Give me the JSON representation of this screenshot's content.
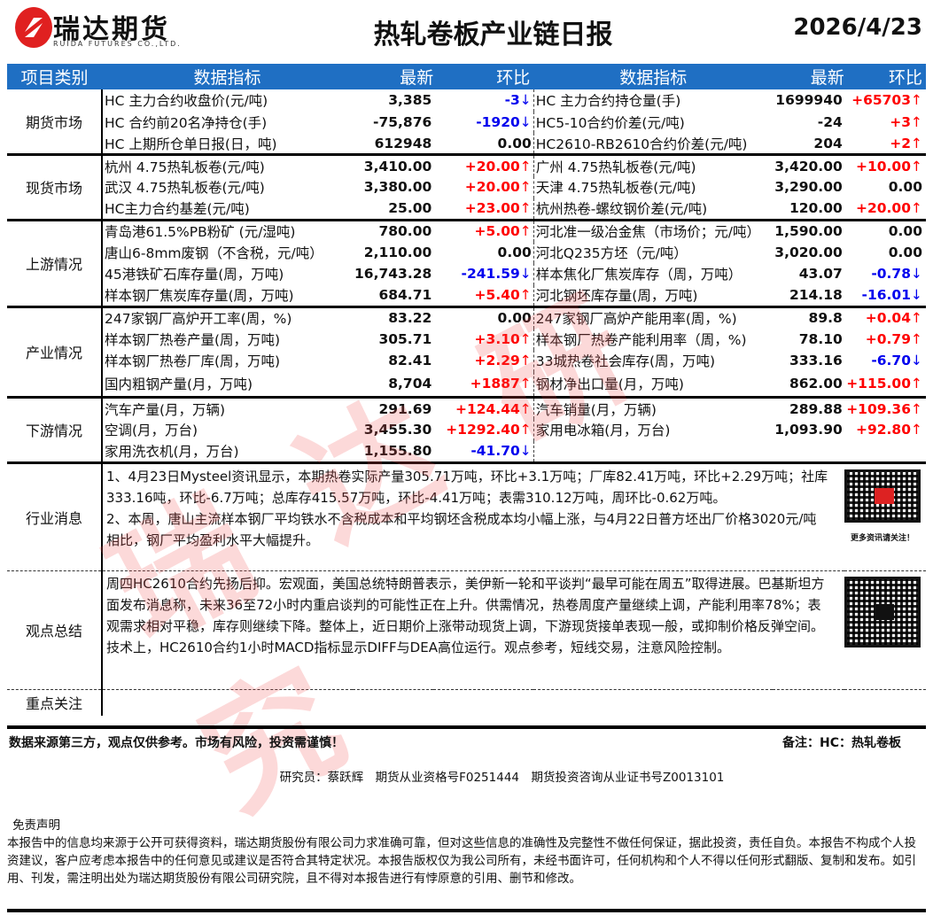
{
  "header": {
    "brand": "瑞达期货",
    "brand_en": "RUIDA FUTURES CO.,LTD.",
    "title": "热轧卷板产业链日报",
    "date": "2026/4/23"
  },
  "columns": {
    "category": "项目类别",
    "indicator": "数据指标",
    "latest": "最新",
    "change": "环比"
  },
  "colors": {
    "header_bg": "#1f6fc3",
    "up": "#ff0000",
    "down": "#0000ee",
    "brand": "#e02020"
  },
  "watermark": "瑞达研究",
  "sections": [
    {
      "name": "期货市场",
      "rows": [
        {
          "l": {
            "name": "HC 主力合约收盘价(元/吨)",
            "value": "3,385",
            "change": "-3",
            "trend": "down"
          },
          "r": {
            "name": "HC 主力合约持仓量(手)",
            "value": "1699940",
            "change": "+65703",
            "trend": "up"
          }
        },
        {
          "l": {
            "name": "HC 合约前20名净持仓(手)",
            "value": "-75,876",
            "change": "-1920",
            "trend": "down"
          },
          "r": {
            "name": "HC5-10合约价差(元/吨)",
            "value": "-24",
            "change": "+3",
            "trend": "up"
          }
        },
        {
          "l": {
            "name": "HC 上期所仓单日报(日，吨)",
            "value": "612948",
            "change": "0.00",
            "trend": "flat"
          },
          "r": {
            "name": "HC2610-RB2610合约价差(元/吨)",
            "value": "204",
            "change": "+2",
            "trend": "up"
          }
        }
      ]
    },
    {
      "name": "现货市场",
      "rows": [
        {
          "l": {
            "name": "杭州 4.75热轧板卷(元/吨)",
            "value": "3,410.00",
            "change": "+20.00",
            "trend": "up"
          },
          "r": {
            "name": "广州 4.75热轧板卷(元/吨)",
            "value": "3,420.00",
            "change": "+10.00",
            "trend": "up"
          }
        },
        {
          "l": {
            "name": "武汉 4.75热轧板卷(元/吨)",
            "value": "3,380.00",
            "change": "+20.00",
            "trend": "up"
          },
          "r": {
            "name": "天津 4.75热轧板卷(元/吨)",
            "value": "3,290.00",
            "change": "0.00",
            "trend": "flat"
          }
        },
        {
          "l": {
            "name": "HC主力合约基差(元/吨)",
            "value": "25.00",
            "change": "+23.00",
            "trend": "up"
          },
          "r": {
            "name": "杭州热卷-螺纹钢价差(元/吨)",
            "value": "120.00",
            "change": "+20.00",
            "trend": "up"
          }
        }
      ]
    },
    {
      "name": "上游情况",
      "rows": [
        {
          "l": {
            "name": "青岛港61.5%PB粉矿 (元/湿吨)",
            "value": "780.00",
            "change": "+5.00",
            "trend": "up"
          },
          "r": {
            "name": "河北准一级冶金焦（市场价；元/吨）",
            "value": "1,590.00",
            "change": "0.00",
            "trend": "flat"
          }
        },
        {
          "l": {
            "name": "唐山6-8mm废钢（不含税，元/吨）",
            "value": "2,110.00",
            "change": "0.00",
            "trend": "flat"
          },
          "r": {
            "name": "河北Q235方坯（元/吨）",
            "value": "3,020.00",
            "change": "0.00",
            "trend": "flat"
          }
        },
        {
          "l": {
            "name": "45港铁矿石库存量(周，万吨)",
            "value": "16,743.28",
            "change": "-241.59",
            "trend": "down"
          },
          "r": {
            "name": "样本焦化厂焦炭库存（周，万吨）",
            "value": "43.07",
            "change": "-0.78",
            "trend": "down"
          }
        },
        {
          "l": {
            "name": "样本钢厂焦炭库存量(周，万吨)",
            "value": "684.71",
            "change": "+5.40",
            "trend": "up"
          },
          "r": {
            "name": "河北钢坯库存量(周，万吨)",
            "value": "214.18",
            "change": "-16.01",
            "trend": "down"
          }
        }
      ]
    },
    {
      "name": "产业情况",
      "rows": [
        {
          "l": {
            "name": "247家钢厂高炉开工率(周，%)",
            "value": "83.22",
            "change": "0.00",
            "trend": "flat"
          },
          "r": {
            "name": "247家钢厂高炉产能用率(周，%)",
            "value": "89.8",
            "change": "+0.04",
            "trend": "up"
          }
        },
        {
          "l": {
            "name": "样本钢厂热卷产量(周，万吨)",
            "value": "305.71",
            "change": "+3.10",
            "trend": "up"
          },
          "r": {
            "name": "样本钢厂热卷产能利用率（周，%)",
            "value": "78.10",
            "change": "+0.79",
            "trend": "up"
          }
        },
        {
          "l": {
            "name": "样本钢厂热卷厂库(周，万吨)",
            "value": "82.41",
            "change": "+2.29",
            "trend": "up"
          },
          "r": {
            "name": "33城热卷社会库存(周，万吨)",
            "value": "333.16",
            "change": "-6.70",
            "trend": "down"
          }
        },
        {
          "l": {
            "name": "国内粗钢产量(月，万吨)",
            "value": "8,704",
            "change": "+1887",
            "trend": "up"
          },
          "r": {
            "name": "钢材净出口量(月，万吨)",
            "value": "862.00",
            "change": "+115.00",
            "trend": "up"
          }
        }
      ]
    },
    {
      "name": "下游情况",
      "rows": [
        {
          "l": {
            "name": "汽车产量(月，万辆)",
            "value": "291.69",
            "change": "+124.44",
            "trend": "up"
          },
          "r": {
            "name": "汽车销量(月，万辆)",
            "value": "289.88",
            "change": "+109.36",
            "trend": "up"
          }
        },
        {
          "l": {
            "name": "空调(月，万台)",
            "value": "3,455.30",
            "change": "+1292.40",
            "trend": "up"
          },
          "r": {
            "name": "家用电冰箱(月，万台)",
            "value": "1,093.90",
            "change": "+92.80",
            "trend": "up"
          }
        },
        {
          "l": {
            "name": "家用洗衣机(月，万台)",
            "value": "1,155.80",
            "change": "-41.70",
            "trend": "down"
          },
          "r": {
            "name": "",
            "value": "",
            "change": "",
            "trend": "flat"
          }
        }
      ]
    }
  ],
  "news": {
    "label": "行业消息",
    "lines": [
      "1、4月23日Mysteel资讯显示，本期热卷实际产量305.71万吨，环比+3.1万吨；厂库82.41万吨，环比+2.29万吨；社库333.16吨，环比-6.7万吨；总库存415.57万吨，环比-4.41万吨；表需310.12万吨，周环比-0.62万吨。",
      "2、本周，唐山主流样本钢厂平均铁水不含税成本和平均钢坯含税成本均小幅上涨，与4月22日普方坯出厂价格3020元/吨相比，钢厂平均盈利水平大幅提升。"
    ],
    "qr_caption": "更多资讯请关注！"
  },
  "view": {
    "label": "观点总结",
    "text": "周四HC2610合约先扬后抑。宏观面，美国总统特朗普表示，美伊新一轮和平谈判“最早可能在周五”取得进展。巴基斯坦方面发布消息称，未来36至72小时内重启谈判的可能性正在上升。供需情况，热卷周度产量继续上调，产能利用率78%；表观需求相对平稳，库存则继续下降。整体上，近日期价上涨带动现货上调，下游现货接单表现一般，或抑制价格反弹空间。技术上，HC2610合约1小时MACD指标显示DIFF与DEA高位运行。观点参考，短线交易，注意风险控制。"
  },
  "focus": {
    "label": "重点关注",
    "text": ""
  },
  "footer": {
    "note_left": "数据来源第三方，观点仅供参考。市场有风险，投资需谨慎！",
    "note_right": "备注：HC：热轧卷板",
    "researcher": "研究员：蔡跃辉　期货从业资格号F0251444　期货投资咨询从业证书号Z0013101",
    "disclaimer_title": "免责声明",
    "disclaimer": "本报告中的信息均来源于公开可获得资料，瑞达期货股份有限公司力求准确可靠，但对这些信息的准确性及完整性不做任何保证，据此投资，责任自负。本报告不构成个人投资建议，客户应考虑本报告中的任何意见或建议是否符合其特定状况。本报告版权仅为我公司所有，未经书面许可，任何机构和个人不得以任何形式翻版、复制和发布。如引用、刊发，需注明出处为瑞达期货股份有限公司研究院，且不得对本报告进行有悖原意的引用、删节和修改。"
  }
}
